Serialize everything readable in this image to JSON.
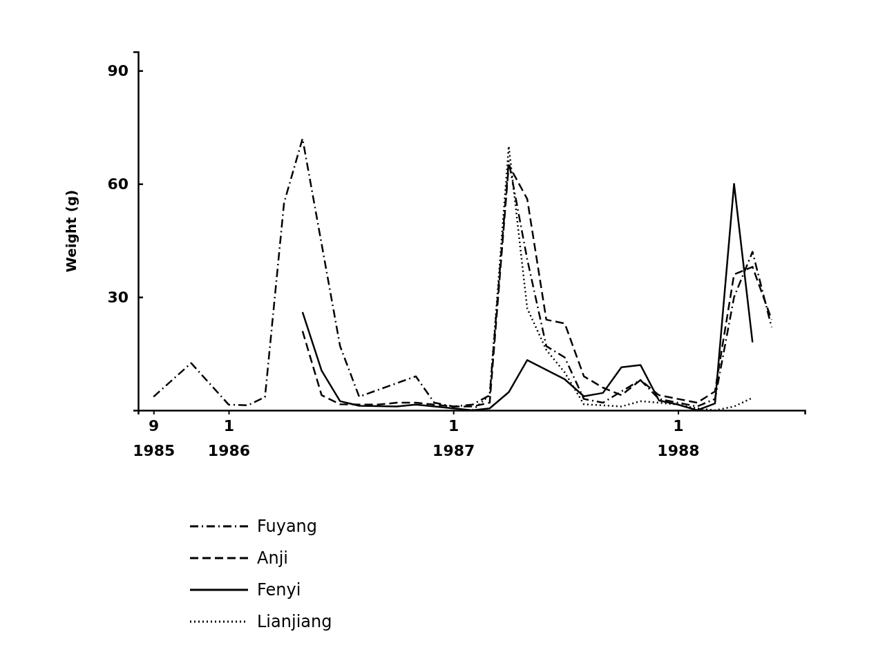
{
  "chart_data": {
    "type": "line",
    "ylabel": "Weight (g)",
    "xlim": [
      "1985-08-07",
      "1988-07-25"
    ],
    "xticks": [
      {
        "value": "1985-09",
        "label": "9 1985"
      },
      {
        "value": "1986-01",
        "label": "1 1986"
      },
      {
        "value": "1987-01",
        "label": "1 1987"
      },
      {
        "value": "1988-01",
        "label": "1 1988"
      }
    ],
    "ylim": [
      0,
      95
    ],
    "yticks": [
      30,
      60,
      90
    ],
    "grid": false,
    "legend": "bottom left",
    "marker": "none",
    "series": [
      {
        "name": "Fuyang",
        "color": "#000000",
        "line_style": "dashdot",
        "x": [
          "1985-09",
          "1985-11",
          "1986-01",
          "1986-02",
          "1986-03",
          "1986-04",
          "1986-05",
          "1986-07",
          "1986-08",
          "1986-11",
          "1986-12",
          "1987-01",
          "1987-02",
          "1987-03",
          "1987-04",
          "1987-05",
          "1987-06",
          "1987-07",
          "1987-08",
          "1987-09",
          "1987-10",
          "1987-11",
          "1987-12",
          "1988-01",
          "1988-02",
          "1988-03",
          "1988-04",
          "1988-05",
          "1988-06"
        ],
        "values": [
          3.6,
          12.5,
          1.5,
          1.3,
          3.5,
          55,
          72,
          17,
          3.6,
          9,
          2,
          1,
          1.5,
          4,
          66,
          40,
          17,
          14,
          3,
          2,
          5,
          8,
          3,
          2,
          1,
          3,
          30,
          42,
          22
        ]
      },
      {
        "name": "Anji",
        "color": "#000000",
        "line_style": "dashed",
        "x": [
          "1986-05",
          "1986-06",
          "1986-07",
          "1986-08",
          "1986-09",
          "1986-10",
          "1986-11",
          "1986-12",
          "1987-01",
          "1987-02",
          "1987-03",
          "1987-04",
          "1987-05",
          "1987-06",
          "1987-07",
          "1987-08",
          "1987-09",
          "1987-10",
          "1987-11",
          "1987-12",
          "1988-01",
          "1988-02",
          "1988-03",
          "1988-04",
          "1988-05",
          "1988-06"
        ],
        "values": [
          21,
          4,
          1.6,
          1.5,
          1.5,
          2,
          2,
          1.5,
          1,
          1,
          2,
          65,
          56,
          24,
          23,
          9,
          6,
          4,
          8,
          4,
          3,
          2,
          5,
          36,
          38,
          24
        ]
      },
      {
        "name": "Fenyi",
        "color": "#000000",
        "line_style": "solid",
        "x": [
          "1986-05",
          "1986-06",
          "1986-07",
          "1986-08",
          "1986-10",
          "1986-11",
          "1987-01",
          "1987-02",
          "1987-03",
          "1987-04",
          "1987-05",
          "1987-07",
          "1987-08",
          "1987-09",
          "1987-10",
          "1987-11",
          "1987-12",
          "1988-01",
          "1988-02",
          "1988-03",
          "1988-04",
          "1988-05"
        ],
        "values": [
          26,
          10.5,
          2.4,
          1.2,
          1,
          1.5,
          0.5,
          0,
          0.5,
          4.8,
          13.3,
          8.2,
          3.7,
          4.6,
          11.4,
          12,
          2.6,
          1.5,
          0,
          1.8,
          60,
          18
        ]
      },
      {
        "name": "Lianjiang",
        "color": "#000000",
        "line_style": "dotted",
        "x": [
          "1987-02",
          "1987-03",
          "1987-04",
          "1987-05",
          "1987-06",
          "1987-07",
          "1987-08",
          "1987-09",
          "1987-10",
          "1987-11",
          "1987-12",
          "1988-01",
          "1988-02",
          "1988-03",
          "1988-04",
          "1988-05"
        ],
        "values": [
          0,
          4,
          70,
          27,
          16,
          10,
          1.6,
          1.3,
          1,
          2.4,
          2,
          1.5,
          0.5,
          0,
          1,
          3.3
        ]
      }
    ]
  }
}
